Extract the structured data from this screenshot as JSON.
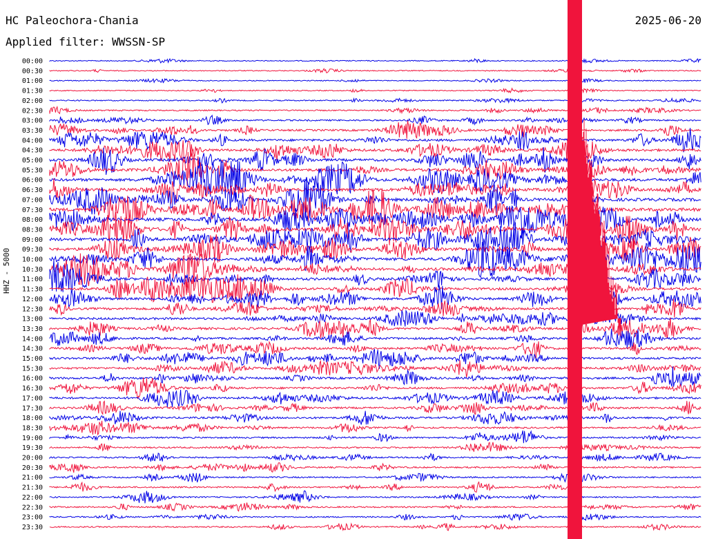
{
  "header": {
    "station": "HC Paleochora-Chania",
    "date": "2025-06-20",
    "filter": "Applied filter: WWSSN-SP",
    "channel": "HHZ - 5000"
  },
  "colors": {
    "trace_a": "#0000e6",
    "trace_b": "#f0143c",
    "background": "#ffffff",
    "text": "#000000"
  },
  "rows": [
    {
      "time": "00:00",
      "color": "trace_a",
      "activity": 0.05
    },
    {
      "time": "00:30",
      "color": "trace_b",
      "activity": 0.04
    },
    {
      "time": "01:00",
      "color": "trace_a",
      "activity": 0.03
    },
    {
      "time": "01:30",
      "color": "trace_b",
      "activity": 0.05
    },
    {
      "time": "02:00",
      "color": "trace_a",
      "activity": 0.12
    },
    {
      "time": "02:30",
      "color": "trace_b",
      "activity": 0.2
    },
    {
      "time": "03:00",
      "color": "trace_a",
      "activity": 0.3
    },
    {
      "time": "03:30",
      "color": "trace_b",
      "activity": 0.45
    },
    {
      "time": "04:00",
      "color": "trace_a",
      "activity": 0.6
    },
    {
      "time": "04:30",
      "color": "trace_b",
      "activity": 0.7
    },
    {
      "time": "05:00",
      "color": "trace_a",
      "activity": 0.75
    },
    {
      "time": "05:30",
      "color": "trace_b",
      "activity": 0.8
    },
    {
      "time": "06:00",
      "color": "trace_a",
      "activity": 0.85
    },
    {
      "time": "06:30",
      "color": "trace_b",
      "activity": 0.9
    },
    {
      "time": "07:00",
      "color": "trace_a",
      "activity": 0.95
    },
    {
      "time": "07:30",
      "color": "trace_b",
      "activity": 1.0
    },
    {
      "time": "08:00",
      "color": "trace_a",
      "activity": 1.0
    },
    {
      "time": "08:30",
      "color": "trace_b",
      "activity": 1.0
    },
    {
      "time": "09:00",
      "color": "trace_a",
      "activity": 0.95
    },
    {
      "time": "09:30",
      "color": "trace_b",
      "activity": 0.9
    },
    {
      "time": "10:00",
      "color": "trace_a",
      "activity": 0.85
    },
    {
      "time": "10:30",
      "color": "trace_b",
      "activity": 0.8
    },
    {
      "time": "11:00",
      "color": "trace_a",
      "activity": 0.75
    },
    {
      "time": "11:30",
      "color": "trace_b",
      "activity": 0.7
    },
    {
      "time": "12:00",
      "color": "trace_a",
      "activity": 0.65
    },
    {
      "time": "12:30",
      "color": "trace_b",
      "activity": 0.6
    },
    {
      "time": "13:00",
      "color": "trace_a",
      "activity": 0.6
    },
    {
      "time": "13:30",
      "color": "trace_b",
      "activity": 0.6
    },
    {
      "time": "14:00",
      "color": "trace_a",
      "activity": 0.55
    },
    {
      "time": "14:30",
      "color": "trace_b",
      "activity": 0.55
    },
    {
      "time": "15:00",
      "color": "trace_a",
      "activity": 0.55
    },
    {
      "time": "15:30",
      "color": "trace_b",
      "activity": 0.5
    },
    {
      "time": "16:00",
      "color": "trace_a",
      "activity": 0.55
    },
    {
      "time": "16:30",
      "color": "trace_b",
      "activity": 0.5
    },
    {
      "time": "17:00",
      "color": "trace_a",
      "activity": 0.5
    },
    {
      "time": "17:30",
      "color": "trace_b",
      "activity": 0.45
    },
    {
      "time": "18:00",
      "color": "trace_a",
      "activity": 0.45
    },
    {
      "time": "18:30",
      "color": "trace_b",
      "activity": 0.35
    },
    {
      "time": "19:00",
      "color": "trace_a",
      "activity": 0.3
    },
    {
      "time": "19:30",
      "color": "trace_b",
      "activity": 0.3
    },
    {
      "time": "20:00",
      "color": "trace_a",
      "activity": 0.25
    },
    {
      "time": "20:30",
      "color": "trace_b",
      "activity": 0.3
    },
    {
      "time": "21:00",
      "color": "trace_a",
      "activity": 0.25
    },
    {
      "time": "21:30",
      "color": "trace_b",
      "activity": 0.25
    },
    {
      "time": "22:00",
      "color": "trace_a",
      "activity": 0.2
    },
    {
      "time": "22:30",
      "color": "trace_b",
      "activity": 0.25
    },
    {
      "time": "23:00",
      "color": "trace_a",
      "activity": 0.2
    },
    {
      "time": "23:30",
      "color": "trace_b",
      "activity": 0.2
    }
  ]
}
